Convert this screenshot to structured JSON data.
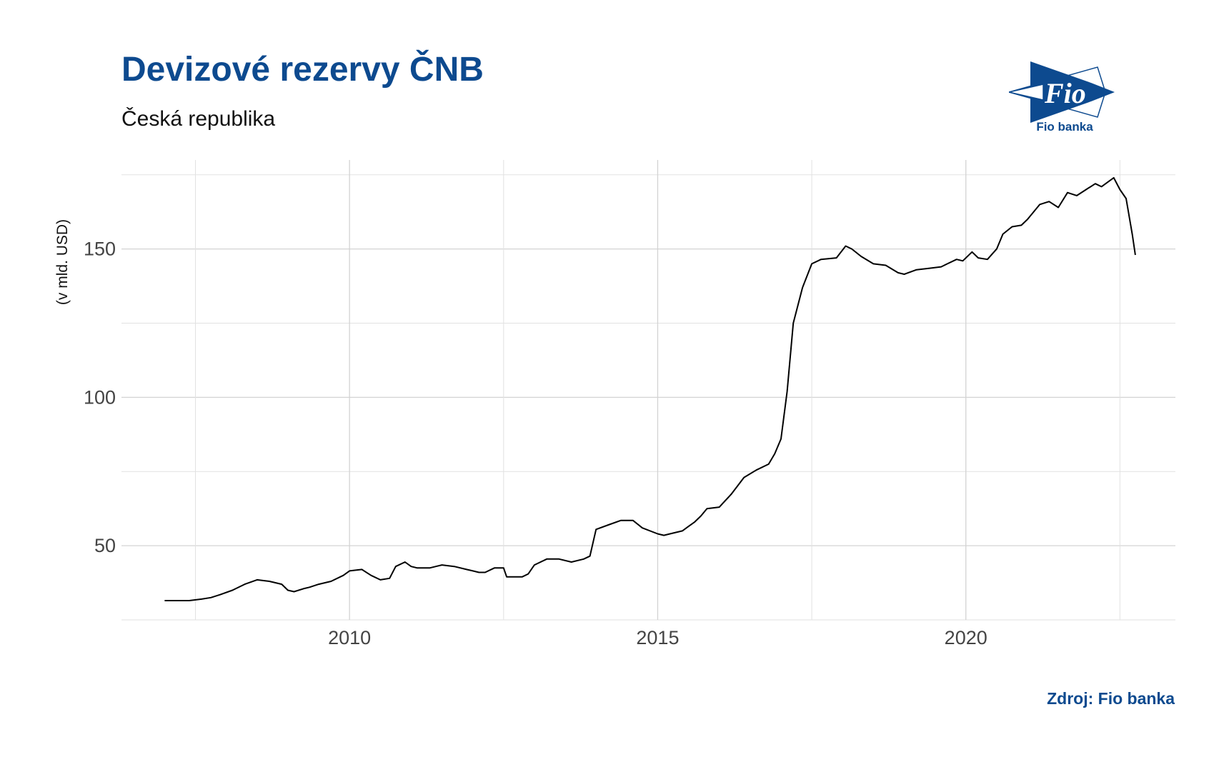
{
  "header": {
    "title": "Devizové rezervy ČNB",
    "subtitle": "Česká republika"
  },
  "logo": {
    "mark": "Fio",
    "name": "Fio banka",
    "icon": "fio-banka-logo-icon",
    "color": "#0d4a8f"
  },
  "footer": {
    "source": "Zdroj: Fio banka"
  },
  "chart_data": {
    "type": "line",
    "title": "Devizové rezervy ČNB",
    "subtitle": "Česká republika",
    "xlabel": "",
    "ylabel": "(v mld. USD)",
    "xlim": [
      2006.3,
      2023.4
    ],
    "ylim": [
      25,
      180
    ],
    "x_ticks": [
      2010,
      2015,
      2020
    ],
    "y_ticks": [
      50,
      100,
      150
    ],
    "grid": true,
    "legend": "none",
    "line_color": "#000000",
    "series": [
      {
        "x": [
          2007.0,
          2007.2,
          2007.4,
          2007.6,
          2007.75,
          2007.9,
          2008.1,
          2008.3,
          2008.5,
          2008.7,
          2008.9,
          2009.0,
          2009.1,
          2009.25,
          2009.35,
          2009.5,
          2009.7,
          2009.9,
          2010.0,
          2010.2,
          2010.35,
          2010.5,
          2010.65,
          2010.75,
          2010.9,
          2011.0,
          2011.1,
          2011.2,
          2011.3,
          2011.4,
          2011.5,
          2011.7,
          2011.9,
          2012.0,
          2012.1,
          2012.2,
          2012.35,
          2012.5,
          2012.55,
          2012.8,
          2012.9,
          2013.0,
          2013.2,
          2013.4,
          2013.6,
          2013.8,
          2013.9,
          2014.0,
          2014.2,
          2014.4,
          2014.6,
          2014.75,
          2015.0,
          2015.1,
          2015.2,
          2015.4,
          2015.5,
          2015.6,
          2015.7,
          2015.8,
          2016.0,
          2016.2,
          2016.4,
          2016.6,
          2016.8,
          2016.9,
          2017.0,
          2017.1,
          2017.2,
          2017.35,
          2017.5,
          2017.65,
          2017.9,
          2018.05,
          2018.15,
          2018.3,
          2018.5,
          2018.7,
          2018.9,
          2019.0,
          2019.2,
          2019.4,
          2019.6,
          2019.7,
          2019.85,
          2019.95,
          2020.1,
          2020.2,
          2020.35,
          2020.5,
          2020.6,
          2020.75,
          2020.9,
          2021.0,
          2021.2,
          2021.35,
          2021.5,
          2021.65,
          2021.8,
          2021.95,
          2022.1,
          2022.2,
          2022.4,
          2022.5,
          2022.6,
          2022.7,
          2022.75
        ],
        "values": [
          31.5,
          31.5,
          31.5,
          32,
          32.5,
          33.5,
          35,
          37,
          38.5,
          38,
          37,
          35,
          34.5,
          35.5,
          36,
          37,
          38,
          40,
          41.5,
          42,
          40,
          38.5,
          39,
          43,
          44.5,
          43,
          42.5,
          42.5,
          42.5,
          43,
          43.5,
          43,
          42,
          41.5,
          41,
          41,
          42.5,
          42.5,
          39.5,
          39.5,
          40.5,
          43.5,
          45.5,
          45.5,
          44.5,
          45.5,
          46.5,
          55.5,
          57,
          58.5,
          58.5,
          56,
          54,
          53.5,
          54,
          55,
          56.5,
          58,
          60,
          62.5,
          63,
          67.5,
          73,
          75.5,
          77.5,
          81,
          86,
          102,
          125,
          137,
          145,
          146.5,
          147,
          151,
          150,
          147.5,
          145,
          144.5,
          142,
          141.5,
          143,
          143.5,
          144,
          145,
          146.5,
          146,
          149,
          147,
          146.5,
          150,
          155,
          157.5,
          158,
          160,
          165,
          166,
          164,
          169,
          168,
          170,
          172,
          171,
          174,
          170,
          167,
          155,
          148
        ]
      }
    ]
  }
}
